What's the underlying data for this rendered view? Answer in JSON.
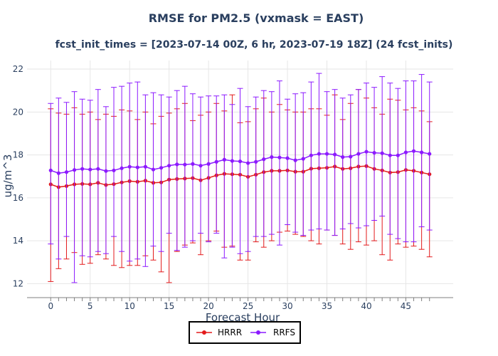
{
  "chart_data": {
    "type": "line",
    "title": "RMSE for PM2.5 (vxmask = EAST)",
    "subtitle": "fcst_init_times = [2023-07-14 00Z, 6 hr, 2023-07-19 18Z] (24 fcst_inits)",
    "xlabel": "Forecast Hour",
    "ylabel": "ug/m^3",
    "xlim": [
      -3,
      51
    ],
    "ylim": [
      11.35,
      22.4
    ],
    "x_ticks": [
      0,
      5,
      10,
      15,
      20,
      25,
      30,
      35,
      40,
      45
    ],
    "x_tick_labels": [
      "0",
      "5",
      "10",
      "15",
      "20",
      "25",
      "30",
      "35",
      "40",
      "45"
    ],
    "y_ticks": [
      12,
      14,
      16,
      18,
      20,
      22
    ],
    "y_tick_labels": [
      "12",
      "14",
      "16",
      "18",
      "20",
      "22"
    ],
    "grid": true,
    "legend_position": "bottom-center",
    "x": [
      0,
      1,
      2,
      3,
      4,
      5,
      6,
      7,
      8,
      9,
      10,
      11,
      12,
      13,
      14,
      15,
      16,
      17,
      18,
      19,
      20,
      21,
      22,
      23,
      24,
      25,
      26,
      27,
      28,
      29,
      30,
      31,
      32,
      33,
      34,
      35,
      36,
      37,
      38,
      39,
      40,
      41,
      42,
      43,
      44,
      45,
      46,
      47,
      48
    ],
    "series": [
      {
        "name": "HRRR",
        "color": "#e31a1c",
        "values": [
          16.63,
          16.5,
          16.55,
          16.63,
          16.65,
          16.63,
          16.7,
          16.6,
          16.64,
          16.72,
          16.78,
          16.75,
          16.8,
          16.7,
          16.72,
          16.85,
          16.88,
          16.9,
          16.92,
          16.82,
          16.93,
          17.05,
          17.12,
          17.1,
          17.08,
          16.98,
          17.08,
          17.2,
          17.26,
          17.26,
          17.28,
          17.22,
          17.22,
          17.36,
          17.38,
          17.4,
          17.46,
          17.35,
          17.38,
          17.46,
          17.48,
          17.35,
          17.28,
          17.18,
          17.2,
          17.3,
          17.26,
          17.18,
          17.1
        ],
        "upper": [
          20.15,
          19.95,
          19.9,
          20.2,
          19.9,
          20.0,
          19.65,
          19.9,
          19.8,
          20.1,
          20.05,
          19.65,
          20.0,
          19.45,
          19.8,
          19.95,
          20.15,
          20.4,
          19.6,
          19.85,
          20.0,
          20.4,
          20.05,
          20.8,
          19.5,
          19.55,
          20.15,
          20.65,
          20.0,
          20.35,
          20.1,
          20.0,
          20.0,
          20.15,
          20.15,
          19.85,
          20.8,
          19.65,
          20.4,
          21.05,
          20.65,
          20.2,
          19.9,
          20.6,
          20.55,
          20.1,
          20.2,
          20.05,
          19.55
        ],
        "lower": [
          12.1,
          12.7,
          13.15,
          13.45,
          12.9,
          12.95,
          13.35,
          13.15,
          12.85,
          12.75,
          12.85,
          12.85,
          13.3,
          13.1,
          12.55,
          12.05,
          13.5,
          13.8,
          13.9,
          13.35,
          14.0,
          14.45,
          13.7,
          13.75,
          13.1,
          13.1,
          13.95,
          13.7,
          14.0,
          14.4,
          14.45,
          14.3,
          14.2,
          14.0,
          13.85,
          14.5,
          14.25,
          13.85,
          13.6,
          13.95,
          13.8,
          14.0,
          13.35,
          13.1,
          13.85,
          13.7,
          13.75,
          13.6,
          13.25
        ]
      },
      {
        "name": "RRFS",
        "color": "#8c1aff",
        "values": [
          17.28,
          17.15,
          17.2,
          17.3,
          17.35,
          17.32,
          17.35,
          17.25,
          17.28,
          17.38,
          17.45,
          17.42,
          17.45,
          17.32,
          17.4,
          17.5,
          17.56,
          17.55,
          17.58,
          17.5,
          17.58,
          17.68,
          17.78,
          17.72,
          17.7,
          17.62,
          17.68,
          17.8,
          17.9,
          17.88,
          17.85,
          17.75,
          17.82,
          17.98,
          18.05,
          18.05,
          18.02,
          17.9,
          17.92,
          18.05,
          18.15,
          18.1,
          18.08,
          17.98,
          17.98,
          18.12,
          18.18,
          18.12,
          18.05
        ],
        "upper": [
          20.4,
          20.65,
          20.45,
          20.95,
          20.6,
          20.55,
          21.05,
          20.25,
          21.15,
          21.2,
          21.35,
          21.4,
          20.8,
          20.9,
          20.8,
          20.7,
          21.0,
          21.2,
          20.85,
          20.7,
          20.75,
          20.75,
          20.8,
          20.35,
          21.1,
          20.25,
          20.7,
          21.0,
          20.95,
          21.45,
          20.6,
          20.85,
          20.9,
          21.4,
          21.8,
          20.95,
          21.05,
          20.65,
          20.8,
          21.05,
          21.35,
          21.15,
          21.65,
          21.35,
          21.1,
          21.45,
          21.45,
          21.75,
          21.4
        ],
        "lower": [
          13.85,
          13.15,
          14.2,
          12.05,
          13.3,
          13.25,
          13.5,
          13.4,
          14.2,
          13.5,
          13.05,
          13.15,
          12.8,
          13.75,
          13.5,
          14.35,
          13.55,
          13.7,
          14.0,
          14.35,
          13.95,
          14.35,
          13.2,
          13.7,
          13.4,
          13.5,
          14.2,
          14.2,
          14.3,
          13.8,
          14.75,
          14.4,
          14.25,
          14.5,
          14.55,
          14.5,
          14.25,
          14.55,
          14.8,
          14.6,
          14.7,
          14.95,
          15.15,
          14.3,
          14.1,
          13.95,
          13.95,
          14.65,
          14.5
        ]
      }
    ]
  }
}
